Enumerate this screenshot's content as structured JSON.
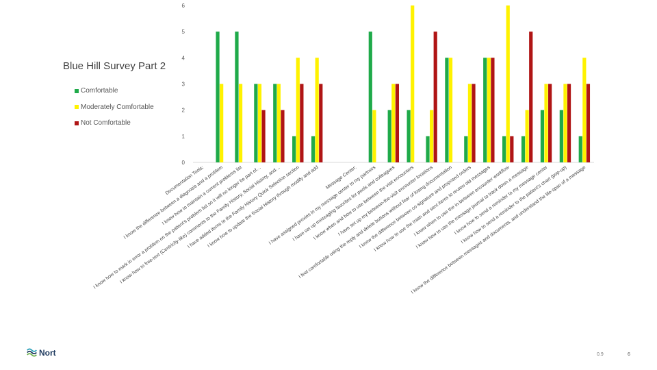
{
  "page": {
    "logo_text": "Nort",
    "footer_version": "0.9",
    "footer_page": "6"
  },
  "legend": [
    {
      "label": "Comfortable",
      "color": "#1faa4a"
    },
    {
      "label": "Moderately Comfortable",
      "color": "#fff200"
    },
    {
      "label": "Not Comfortable",
      "color": "#b01515"
    }
  ],
  "chart_data": {
    "type": "bar",
    "title": "Blue Hill Survey Part 2",
    "xlabel": "",
    "ylabel": "",
    "ylim": [
      0,
      6
    ],
    "yticks": [
      0,
      1,
      2,
      3,
      4,
      5,
      6
    ],
    "grid": false,
    "legend_position": "left",
    "categories": [
      "Documentation Tools:",
      "I know the difference between a diagnosis and a problem",
      "I know how to maintain a current problems list",
      "I know how to mark in error a problem on the patient's problem list so it will no longer be part of…",
      "I know how to free-text (Centricity-like) comments to the Family History, Social History, and…",
      "I have added items to the Family History Quick Selection section",
      "I know how to update the Social History through modify and add",
      "",
      "Message Center:",
      "I have assigned proxies in my message center to my partners",
      "I have set up messaging favorites for pools and colleagues",
      "I know when and how to use between the visit encounters",
      "I have set up my between-the-visit encounter locations",
      "I feel comfortable using the reply and delete buttons without fear of losing documentation",
      "I know the difference between co-signature and proposed orders",
      "I know how to use the trash and sent items to review old messages",
      "I know when to use the in-between encounter workflow",
      "I know how to use the message journal to track down a message",
      "I know how to send a reminder to my message center",
      "I know how to send a reminder to the patient's chart (pop-up)",
      "I know the difference between messages and documents, and understand the life-span of a message"
    ],
    "series": [
      {
        "name": "Comfortable",
        "color": "#1faa4a",
        "values": [
          null,
          5,
          5,
          3,
          3,
          1,
          1,
          null,
          null,
          5,
          2,
          2,
          1,
          4,
          1,
          4,
          1,
          1,
          2,
          2,
          1
        ]
      },
      {
        "name": "Moderately Comfortable",
        "color": "#fff200",
        "values": [
          null,
          3,
          3,
          3,
          3,
          4,
          4,
          null,
          null,
          2,
          3,
          6,
          2,
          4,
          3,
          4,
          6,
          2,
          3,
          3,
          4
        ]
      },
      {
        "name": "Not Comfortable",
        "color": "#b01515",
        "values": [
          null,
          null,
          null,
          2,
          2,
          3,
          3,
          null,
          null,
          null,
          3,
          null,
          5,
          null,
          3,
          4,
          1,
          5,
          3,
          3,
          3
        ]
      }
    ]
  }
}
